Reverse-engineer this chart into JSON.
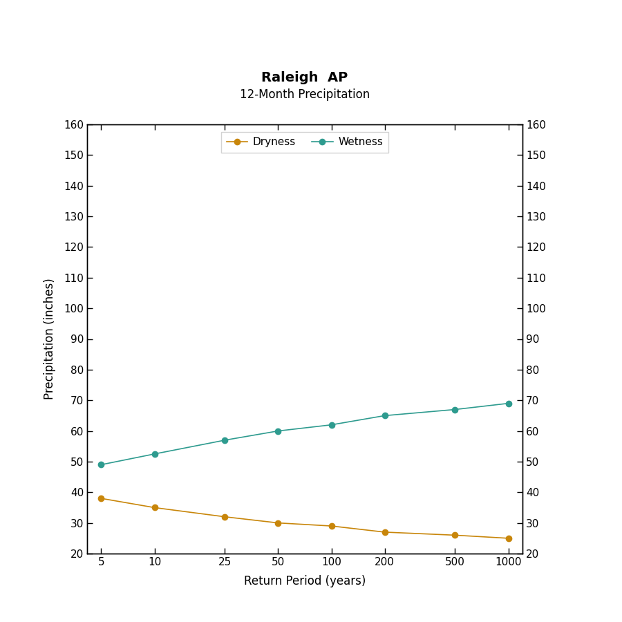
{
  "title1": "Raleigh  AP",
  "title2": "12-Month Precipitation",
  "xlabel": "Return Period (years)",
  "ylabel": "Precipitation (inches)",
  "x_values": [
    5,
    10,
    25,
    50,
    100,
    200,
    500,
    1000
  ],
  "dryness_y": [
    38.0,
    35.0,
    32.0,
    30.0,
    29.0,
    27.0,
    26.0,
    25.0
  ],
  "wetness_y": [
    49.0,
    52.5,
    57.0,
    60.0,
    62.0,
    65.0,
    67.0,
    69.0
  ],
  "dryness_color": "#C8860A",
  "wetness_color": "#2E9B8F",
  "ylim": [
    20,
    160
  ],
  "yticks": [
    20,
    30,
    40,
    50,
    60,
    70,
    80,
    90,
    100,
    110,
    120,
    130,
    140,
    150,
    160
  ],
  "background_color": "#FFFFFF",
  "legend_labels": [
    "Dryness",
    "Wetness"
  ]
}
